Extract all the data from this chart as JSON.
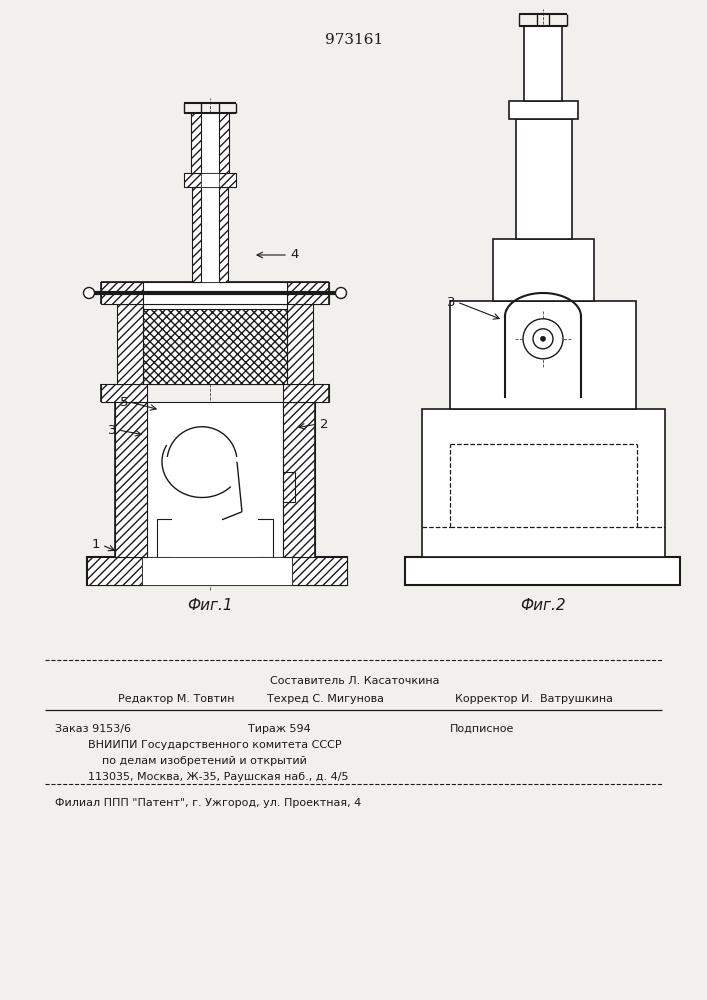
{
  "patent_number": "973161",
  "fig1_label": "Фиг.1",
  "fig2_label": "Фиг.2",
  "footer_line1": "Составитель Л. Касаточкина",
  "footer_editor": "Редактор М. Товтин",
  "footer_tech": "Техред С. Мигунова",
  "footer_corrector": "Корректор И.  Ватрушкина",
  "footer_order": "Заказ 9153/6",
  "footer_tirazh": "Тираж 594",
  "footer_podp": "Подписное",
  "footer_vniip": "ВНИИПИ Государственного комитета СССР",
  "footer_dela": "    по делам изобретений и открытий",
  "footer_addr": "113035, Москва, Ж-35, Раушская наб., д. 4/5",
  "footer_filial": "Филиал ППП \"Патент\", г. Ужгород, ул. Проектная, 4",
  "bg_color": "#f2f0ec",
  "line_color": "#1a1a1a"
}
